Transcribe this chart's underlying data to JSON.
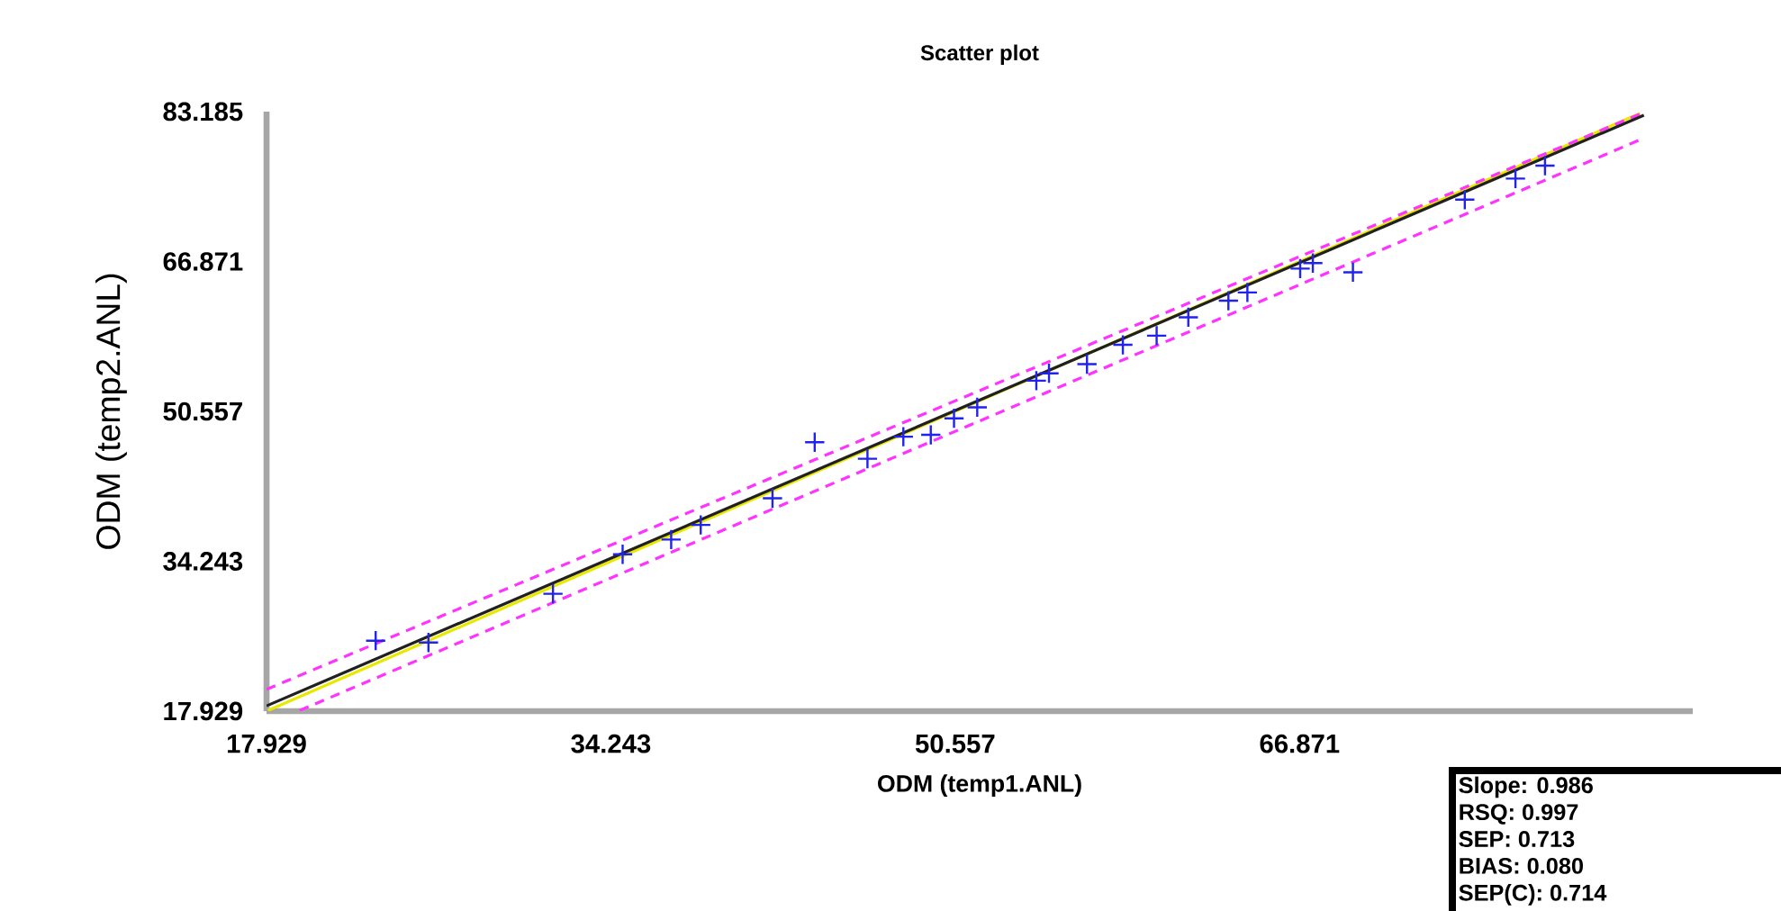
{
  "chart_data": {
    "type": "scatter",
    "title": "Scatter plot",
    "xlabel": "ODM (temp1.ANL)",
    "ylabel": "ODM (temp2.ANL)",
    "xlim": [
      17.929,
      85.5
    ],
    "ylim": [
      17.929,
      83.185
    ],
    "xticks": [
      17.929,
      34.243,
      50.557,
      66.871
    ],
    "yticks": [
      17.929,
      34.243,
      50.557,
      66.871,
      83.185
    ],
    "grid": false,
    "series": [
      {
        "type": "line",
        "color": "#e8e800",
        "line_style": "solid",
        "marker": "none",
        "x": [
          18.0,
          83.0
        ],
        "values": [
          18.0,
          83.0
        ]
      },
      {
        "type": "line",
        "color": "#ff33ff",
        "line_style": "dashed",
        "marker": "none",
        "x": [
          17.929,
          83.185
        ],
        "values": [
          20.3,
          83.1
        ]
      },
      {
        "type": "line",
        "color": "#ff33ff",
        "line_style": "dashed",
        "marker": "none",
        "x": [
          19.5,
          83.185
        ],
        "values": [
          18.0,
          80.3
        ]
      },
      {
        "type": "line",
        "color": "#202020",
        "line_style": "solid",
        "marker": "none",
        "x": [
          17.929,
          83.185
        ],
        "values": [
          18.5,
          82.8
        ]
      },
      {
        "color": "#2222ee",
        "marker": "cross",
        "x": [
          23.1,
          25.6,
          31.5,
          34.8,
          37.1,
          38.5,
          41.9,
          43.9,
          46.4,
          48.1,
          49.4,
          50.5,
          51.6,
          54.4,
          55.0,
          56.8,
          58.5,
          60.1,
          61.6,
          63.5,
          64.4,
          66.9,
          67.5,
          69.4,
          74.7,
          77.1,
          78.5
        ],
        "values": [
          25.6,
          25.4,
          30.7,
          35.0,
          36.6,
          38.2,
          41.1,
          47.2,
          45.4,
          47.8,
          48.0,
          49.8,
          51.0,
          53.9,
          54.7,
          55.7,
          57.8,
          58.8,
          60.8,
          62.6,
          63.5,
          66.1,
          66.7,
          65.7,
          73.6,
          75.9,
          77.3
        ]
      }
    ],
    "annotations": [
      "Slope: 0.986",
      "RSQ: 0.997",
      "SEP: 0.713",
      "BIAS: 0.080",
      "SEP(C): 0.714"
    ]
  }
}
